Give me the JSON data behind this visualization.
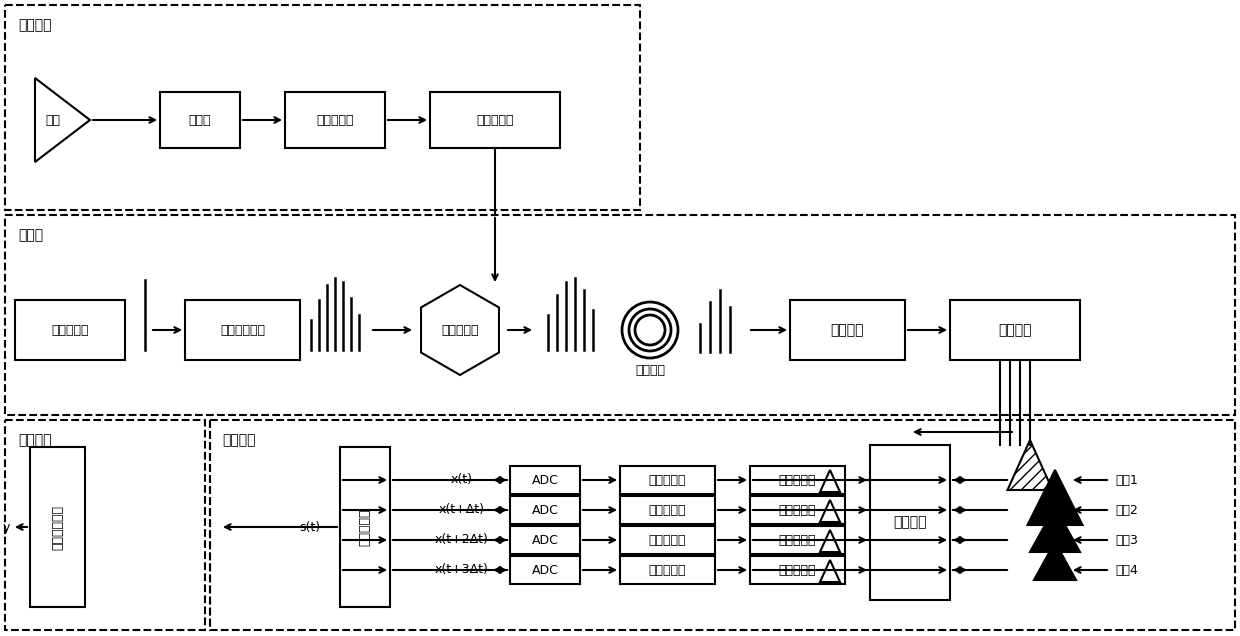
{
  "bg": "#ffffff",
  "labels": {
    "rf_section": "射频前端",
    "opt_section": "光链路",
    "info_section": "信息处理",
    "sig_section": "信号转换",
    "antenna": "天线",
    "limiter": "限幅器",
    "rf_amp": "射频放大器",
    "bandpass": "带通滤波器",
    "modelocked": "锁模激光器",
    "tunable": "可调光滤波器",
    "eo_mod": "电光调制器",
    "disp_fiber": "色散光纤",
    "opt_amp": "光放大器",
    "wdm": "波分复用",
    "delay": "延时阵列",
    "radar": "雷达信号处理",
    "recon": "复信号重构",
    "adc": "ADC",
    "lpf": "低通滤波器",
    "pd": "光电探测器",
    "ch1": "通道1",
    "ch2": "通道2",
    "ch3": "通道3",
    "ch4": "通道4",
    "st": "s(t)",
    "y": "y",
    "xt0": "x(t)",
    "xt1": "x(t+Δt)",
    "xt2": "x(t+2Δt)",
    "xt3": "x(t+3Δt)"
  }
}
